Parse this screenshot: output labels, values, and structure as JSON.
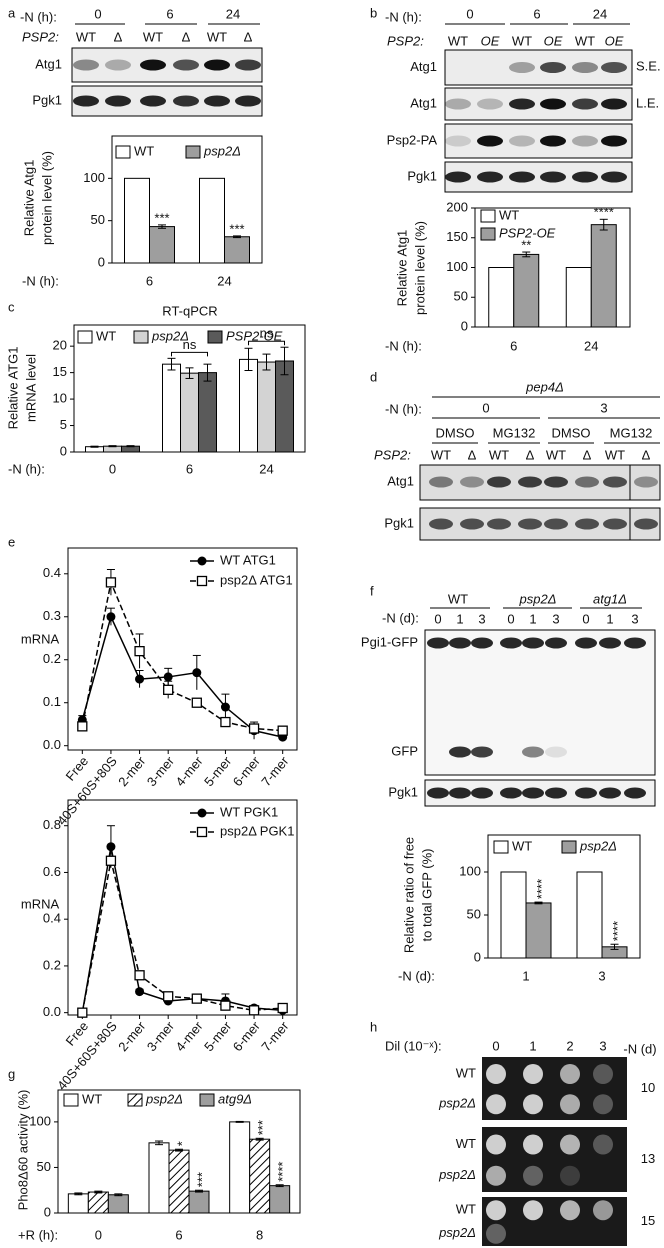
{
  "panel_labels": [
    "a",
    "b",
    "c",
    "d",
    "e",
    "f",
    "g",
    "h"
  ],
  "blots": {
    "a": {
      "time_label": "-N (h):",
      "times": [
        "0",
        "6",
        "24"
      ],
      "genotype_label": "PSP2:",
      "lanes": [
        "WT",
        "Δ",
        "WT",
        "Δ",
        "WT",
        "Δ"
      ],
      "rows": [
        "Atg1",
        "Pgk1"
      ]
    },
    "b": {
      "time_label": "-N (h):",
      "times": [
        "0",
        "6",
        "24"
      ],
      "genotype_label": "PSP2:",
      "lanes": [
        "WT",
        "OE",
        "WT",
        "OE",
        "WT",
        "OE"
      ],
      "rows": [
        "Atg1",
        "Atg1",
        "Psp2-PA",
        "Pgk1"
      ],
      "exposures": [
        "S.E.",
        "L.E."
      ]
    },
    "d": {
      "strain": "pep4Δ",
      "time_label": "-N (h):",
      "times": [
        "0",
        "3"
      ],
      "treatments": [
        "DMSO",
        "MG132",
        "DMSO",
        "MG132"
      ],
      "genotype_label": "PSP2:",
      "lanes": [
        "WT",
        "Δ",
        "WT",
        "Δ",
        "WT",
        "Δ",
        "WT",
        "Δ"
      ],
      "rows": [
        "Atg1",
        "Pgk1"
      ]
    },
    "f": {
      "time_label": "-N (d):",
      "strains": [
        "WT",
        "psp2Δ",
        "atg1Δ"
      ],
      "lanes": [
        "0",
        "1",
        "3",
        "0",
        "1",
        "3",
        "0",
        "1",
        "3"
      ],
      "rows": [
        "Pgi1-GFP",
        "GFP",
        "Pgk1"
      ]
    },
    "h": {
      "dilution_label": "Dil (10⁻ˣ):",
      "dilutions": [
        "0",
        "1",
        "2",
        "3"
      ],
      "time_label": "-N (d)",
      "plates": [
        {
          "strains": [
            "WT",
            "psp2Δ"
          ],
          "day": "10"
        },
        {
          "strains": [
            "WT",
            "psp2Δ"
          ],
          "day": "13"
        },
        {
          "strains": [
            "WT",
            "psp2Δ"
          ],
          "day": "15"
        }
      ]
    }
  },
  "chart_data": [
    {
      "type": "bar",
      "ylabel": [
        "Relative Atg1",
        "protein level (%)"
      ],
      "xlabel": "-N (h):",
      "categories": [
        "6",
        "24"
      ],
      "series": [
        {
          "name": "WT",
          "color": "#ffffff",
          "values": [
            100,
            100
          ]
        },
        {
          "name": "psp2Δ",
          "color": "#9e9e9e",
          "values": [
            43,
            31
          ],
          "errors": [
            2,
            1
          ],
          "stars": [
            "***",
            "***"
          ]
        }
      ],
      "ylim": [
        0,
        150
      ],
      "yticks": [
        0,
        50,
        100
      ],
      "legend": "top"
    },
    {
      "type": "bar",
      "ylabel": [
        "Relative Atg1",
        "protein level (%)"
      ],
      "xlabel": "-N (h):",
      "categories": [
        "6",
        "24"
      ],
      "series": [
        {
          "name": "WT",
          "color": "#ffffff",
          "values": [
            100,
            100
          ]
        },
        {
          "name": "PSP2-OE",
          "color": "#9e9e9e",
          "values": [
            122,
            172
          ],
          "errors": [
            4,
            9
          ],
          "stars": [
            "**",
            "****"
          ]
        }
      ],
      "ylim": [
        0,
        200
      ],
      "yticks": [
        0,
        50,
        100,
        150,
        200
      ],
      "legend": "top-left"
    },
    {
      "type": "bar",
      "title": "RT-qPCR",
      "ylabel": [
        "Relative ATG1",
        "mRNA level"
      ],
      "xlabel": "-N (h):",
      "categories": [
        "0",
        "6",
        "24"
      ],
      "series": [
        {
          "name": "WT",
          "color": "#ffffff",
          "values": [
            1,
            16.6,
            17.5
          ],
          "errors": [
            0.1,
            1.1,
            2.1
          ]
        },
        {
          "name": "psp2Δ",
          "color": "#d3d3d3",
          "values": [
            1.1,
            14.9,
            17
          ],
          "errors": [
            0.1,
            1,
            1.5
          ]
        },
        {
          "name": "PSP2-OE",
          "color": "#5a5a5a",
          "values": [
            1.1,
            15,
            17.2
          ],
          "errors": [
            0.1,
            1.6,
            2.6
          ]
        }
      ],
      "significance": [
        null,
        "ns",
        "ns"
      ],
      "ylim": [
        0,
        24
      ],
      "yticks": [
        0,
        5,
        10,
        15,
        20
      ],
      "legend": "top"
    },
    {
      "type": "line",
      "ylabel": "mRNA",
      "categories": [
        "Free",
        "40S+60S+80S",
        "2-mer",
        "3-mer",
        "4-mer",
        "5-mer",
        "6-mer",
        "7-mer"
      ],
      "series": [
        {
          "name": "WT ATG1",
          "color": "#000000",
          "marker": "circle",
          "dash": false,
          "values": [
            0.06,
            0.3,
            0.155,
            0.16,
            0.17,
            0.09,
            0.035,
            0.02
          ],
          "errors": [
            0.01,
            0.02,
            0.02,
            0.02,
            0.04,
            0.03,
            0.02,
            0.01
          ]
        },
        {
          "name": "psp2Δ ATG1",
          "color": "#000000",
          "marker": "square",
          "dash": true,
          "values": [
            0.045,
            0.38,
            0.22,
            0.13,
            0.1,
            0.055,
            0.04,
            0.035
          ],
          "errors": [
            0.01,
            0.03,
            0.04,
            0.02,
            0.01,
            0.01,
            0.01,
            0.01
          ]
        }
      ],
      "ylim": [
        -0.01,
        0.46
      ],
      "yticks": [
        {
          "value": 0,
          "label": "0.0"
        },
        0.1,
        0.2,
        0.3,
        0.4
      ],
      "legend": "top-right"
    },
    {
      "type": "line",
      "ylabel": "mRNA",
      "categories": [
        "Free",
        "40S+60S+80S",
        "2-mer",
        "3-mer",
        "4-mer",
        "5-mer",
        "6-mer",
        "7-mer"
      ],
      "series": [
        {
          "name": "WT PGK1",
          "color": "#000000",
          "marker": "circle",
          "dash": false,
          "values": [
            0,
            0.71,
            0.09,
            0.05,
            0.06,
            0.05,
            0.02,
            0.01
          ],
          "errors": [
            0,
            0.09,
            0.01,
            0.01,
            0.02,
            0.03,
            0.01,
            0.01
          ]
        },
        {
          "name": "psp2Δ PGK1",
          "color": "#000000",
          "marker": "square",
          "dash": true,
          "values": [
            0,
            0.65,
            0.16,
            0.07,
            0.06,
            0.03,
            0.01,
            0.02
          ]
        }
      ],
      "ylim": [
        -0.01,
        0.91
      ],
      "yticks": [
        {
          "value": 0,
          "label": "0.0"
        },
        0.2,
        0.4,
        0.6,
        0.8
      ],
      "legend": "top-right"
    },
    {
      "type": "bar",
      "ylabel": [
        "Relative ratio of free",
        "to total GFP (%)"
      ],
      "xlabel": "-N (d):",
      "categories": [
        "1",
        "3"
      ],
      "series": [
        {
          "name": "WT",
          "color": "#ffffff",
          "values": [
            100,
            100
          ]
        },
        {
          "name": "psp2Δ",
          "color": "#9e9e9e",
          "values": [
            64,
            13
          ],
          "errors": [
            1,
            3
          ],
          "stars": [
            "****",
            "****"
          ]
        }
      ],
      "ylim": [
        0,
        143
      ],
      "yticks": [
        0,
        50,
        100
      ],
      "legend": "top",
      "vertical_stars": true
    },
    {
      "type": "bar",
      "ylabel": [
        "Pho8Δ60 activity (%)"
      ],
      "xlabel": "+R (h):",
      "categories": [
        "0",
        "6",
        "8"
      ],
      "series": [
        {
          "name": "WT",
          "color": "#ffffff",
          "values": [
            21,
            77,
            100
          ],
          "errors": [
            1,
            2,
            0.5
          ]
        },
        {
          "name": "psp2Δ",
          "color": "#ffffff",
          "hatch": true,
          "values": [
            23,
            69,
            81
          ],
          "errors": [
            1,
            1,
            1
          ],
          "stars": [
            null,
            "*",
            "***"
          ]
        },
        {
          "name": "atg9Δ",
          "color": "#9e9e9e",
          "values": [
            20,
            24,
            30
          ],
          "errors": [
            1,
            1,
            1
          ],
          "stars": [
            null,
            "***",
            "****"
          ]
        }
      ],
      "ylim": [
        0,
        135
      ],
      "yticks": [
        0,
        50,
        100
      ],
      "legend": "top",
      "vertical_stars": true
    }
  ]
}
